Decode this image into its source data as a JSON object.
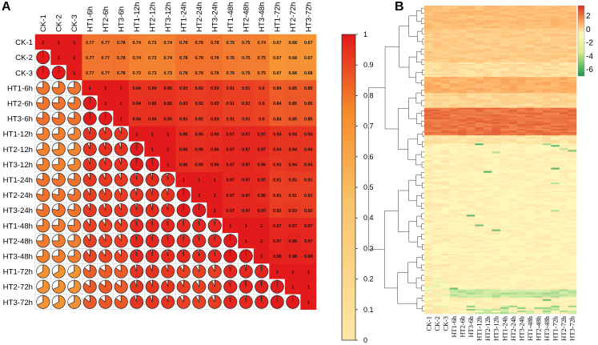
{
  "panel_a_letter": "A",
  "panel_b_letter": "B",
  "chart_data": [
    {
      "type": "heatmap",
      "name": "correlation-matrix",
      "labels": [
        "CK-1",
        "CK-2",
        "CK-3",
        "HT1-6h",
        "HT2-6h",
        "HT3-6h",
        "HT1-12h",
        "HT2-12h",
        "HT3-12h",
        "HT1-24h",
        "HT2-24h",
        "HT3-24h",
        "HT1-48h",
        "HT2-48h",
        "HT3-48h",
        "HT1-72h",
        "HT2-72h",
        "HT3-72h"
      ],
      "upper_values": [
        [
          "1",
          "1",
          "1",
          "0.77",
          "0.77",
          "0.78",
          "0.74",
          "0.73",
          "0.74",
          "0.78",
          "0.78",
          "0.78",
          "0.75",
          "0.75",
          "0.74",
          "0.67",
          "0.68",
          "0.67"
        ],
        [
          "",
          "1",
          "1",
          "0.77",
          "0.77",
          "0.78",
          "0.74",
          "0.73",
          "0.74",
          "0.78",
          "0.78",
          "0.78",
          "0.76",
          "0.75",
          "0.75",
          "0.67",
          "0.68",
          "0.67"
        ],
        [
          "",
          "",
          "1",
          "0.77",
          "0.77",
          "0.78",
          "0.73",
          "0.73",
          "0.73",
          "0.78",
          "0.78",
          "0.78",
          "0.76",
          "0.75",
          "0.75",
          "0.67",
          "0.68",
          "0.68"
        ],
        [
          "",
          "",
          "",
          "1",
          "1",
          "1",
          "0.94",
          "0.94",
          "0.95",
          "0.93",
          "0.92",
          "0.93",
          "0.91",
          "0.91",
          "0.9",
          "0.84",
          "0.85",
          "0.85"
        ],
        [
          "",
          "",
          "",
          "",
          "1",
          "1",
          "0.94",
          "0.95",
          "0.95",
          "0.93",
          "0.92",
          "0.93",
          "0.91",
          "0.91",
          "0.9",
          "0.84",
          "0.85",
          "0.85"
        ],
        [
          "",
          "",
          "",
          "",
          "",
          "1",
          "0.94",
          "0.94",
          "0.95",
          "0.93",
          "0.92",
          "0.93",
          "0.91",
          "0.91",
          "0.9",
          "0.84",
          "0.85",
          "0.85"
        ],
        [
          "",
          "",
          "",
          "",
          "",
          "",
          "1",
          "1",
          "1",
          "0.96",
          "0.95",
          "0.96",
          "0.97",
          "0.97",
          "0.97",
          "0.94",
          "0.94",
          "0.94"
        ],
        [
          "",
          "",
          "",
          "",
          "",
          "",
          "",
          "1",
          "1",
          "0.96",
          "0.96",
          "0.96",
          "0.97",
          "0.97",
          "0.97",
          "0.94",
          "0.94",
          "0.94"
        ],
        [
          "",
          "",
          "",
          "",
          "",
          "",
          "",
          "",
          "1",
          "0.96",
          "0.95",
          "0.96",
          "0.97",
          "0.97",
          "0.96",
          "0.93",
          "0.94",
          "0.94"
        ],
        [
          "",
          "",
          "",
          "",
          "",
          "",
          "",
          "",
          "",
          "1",
          "1",
          "1",
          "0.97",
          "0.97",
          "0.97",
          "0.91",
          "0.92",
          "0.91"
        ],
        [
          "",
          "",
          "",
          "",
          "",
          "",
          "",
          "",
          "",
          "",
          "1",
          "1",
          "0.97",
          "0.97",
          "0.96",
          "0.91",
          "0.91",
          "0.91"
        ],
        [
          "",
          "",
          "",
          "",
          "",
          "",
          "",
          "",
          "",
          "",
          "",
          "1",
          "0.97",
          "0.97",
          "0.97",
          "0.92",
          "0.93",
          "0.92"
        ],
        [
          "",
          "",
          "",
          "",
          "",
          "",
          "",
          "",
          "",
          "",
          "",
          "",
          "1",
          "1",
          "1",
          "0.97",
          "0.97",
          "0.97"
        ],
        [
          "",
          "",
          "",
          "",
          "",
          "",
          "",
          "",
          "",
          "",
          "",
          "",
          "",
          "1",
          "1",
          "0.97",
          "0.98",
          "0.97"
        ],
        [
          "",
          "",
          "",
          "",
          "",
          "",
          "",
          "",
          "",
          "",
          "",
          "",
          "",
          "",
          "1",
          "0.98",
          "0.98",
          "0.98"
        ],
        [
          "",
          "",
          "",
          "",
          "",
          "",
          "",
          "",
          "",
          "",
          "",
          "",
          "",
          "",
          "",
          "1",
          "1",
          "1"
        ],
        [
          "",
          "",
          "",
          "",
          "",
          "",
          "",
          "",
          "",
          "",
          "",
          "",
          "",
          "",
          "",
          "",
          "1",
          "1"
        ],
        [
          "",
          "",
          "",
          "",
          "",
          "",
          "",
          "",
          "",
          "",
          "",
          "",
          "",
          "",
          "",
          "",
          "",
          "1"
        ]
      ],
      "colorbar_ticks": [
        "1",
        "0.9",
        "0.8",
        "0.7",
        "0.6",
        "0.5",
        "0.4",
        "0.3",
        "0.2",
        "0.1",
        "0"
      ],
      "colorbar_range": [
        0,
        1
      ],
      "colors": {
        "low": "#fde7a6",
        "mid": "#f8a237",
        "high": "#e31a1c",
        "grid": "#cccccc"
      }
    },
    {
      "type": "heatmap",
      "name": "expression-heatmap-with-dendrogram",
      "column_labels": [
        "CK-1",
        "CK-2",
        "CK-3",
        "HT1-6h",
        "HT2-6h",
        "HT3-6h",
        "HT1-12h",
        "HT2-12h",
        "HT3-12h",
        "HT1-24h",
        "HT2-24h",
        "HT3-24h",
        "HT1-48h",
        "HT2-48h",
        "HT3-48h",
        "HT1-72h",
        "HT2-72h",
        "HT3-72h"
      ],
      "colorbar_ticks": [
        "2",
        "0",
        "-2",
        "-4",
        "-6"
      ],
      "colorbar_range": [
        -7,
        3.5
      ],
      "colors": {
        "high": "#d7301f",
        "mid": "#fee8a0",
        "zero": "#fff7bc",
        "low": "#1a9850"
      }
    }
  ]
}
